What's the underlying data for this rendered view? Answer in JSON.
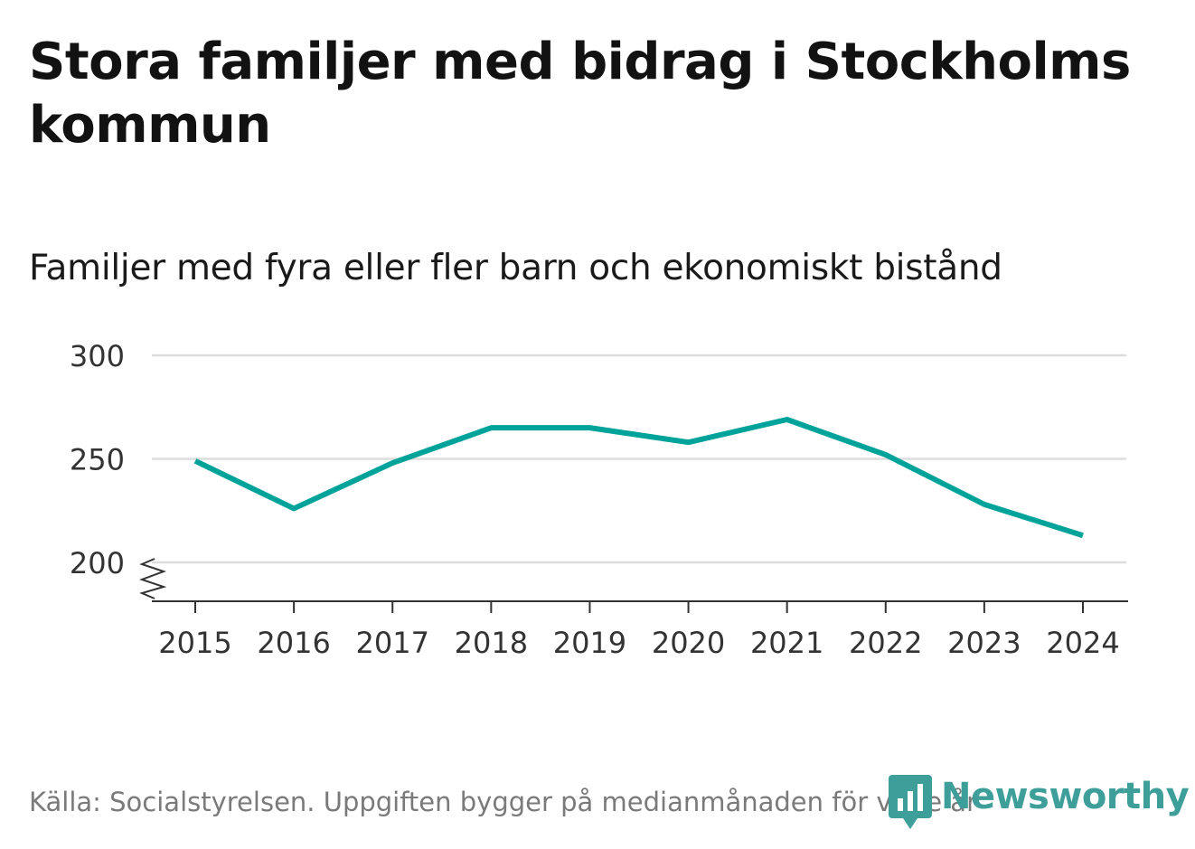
{
  "title": "Stora familjer med bidrag i Stockholms kommun",
  "subtitle": "Familjer med fyra eller fler barn och ekonomiskt bistånd",
  "footer": "Källa: Socialstyrelsen. Uppgiften bygger på medianmånaden för varje år",
  "logo_text": "Newsworthy",
  "colors": {
    "line": "#00a39a",
    "grid": "#dddddd",
    "axis": "#333333",
    "logo": "#3d9e9a"
  },
  "chart_data": {
    "type": "line",
    "title": "Familjer med fyra eller fler barn och ekonomiskt bistånd",
    "xlabel": "",
    "ylabel": "",
    "categories": [
      "2015",
      "2016",
      "2017",
      "2018",
      "2019",
      "2020",
      "2021",
      "2022",
      "2023",
      "2024"
    ],
    "series": [
      {
        "name": "Familjer",
        "values": [
          249,
          226,
          248,
          265,
          265,
          258,
          269,
          252,
          228,
          213
        ]
      }
    ],
    "yticks": [
      "200",
      "250",
      "300"
    ],
    "ylim": [
      200,
      300
    ],
    "y_axis_break": true,
    "grid": true
  }
}
